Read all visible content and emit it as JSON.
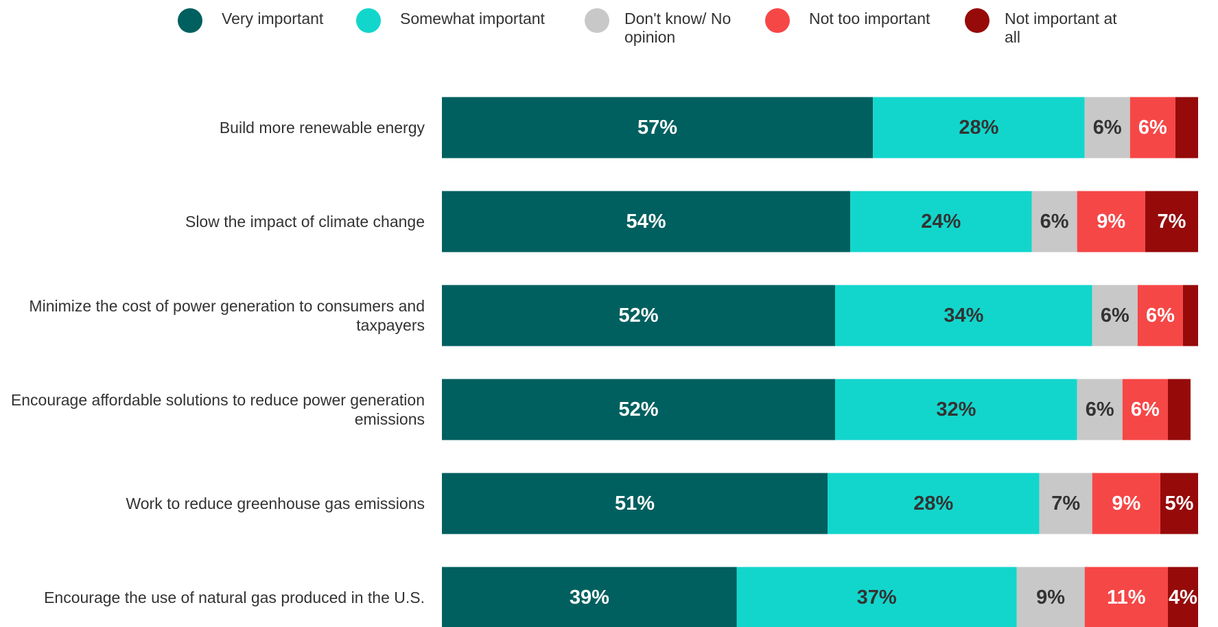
{
  "chart_data": {
    "type": "stacked_bar",
    "orientation": "horizontal",
    "categories": [
      "Build more renewable energy",
      "Slow the impact of climate change",
      "Minimize the cost of power generation to consumers and taxpayers",
      "Encourage affordable solutions to reduce power generation emissions",
      "Work to reduce greenhouse gas emissions",
      "Encourage the use of natural gas produced in the U.S."
    ],
    "xlim": [
      0,
      100
    ],
    "legend": "top",
    "series": [
      {
        "name": "Very important",
        "color": "#00605f",
        "label_color": "#ffffff",
        "values": [
          57,
          54,
          52,
          52,
          51,
          39
        ],
        "value_labels": [
          "57%",
          "54%",
          "52%",
          "52%",
          "51%",
          "39%"
        ]
      },
      {
        "name": "Somewhat important",
        "color": "#12d6cc",
        "label_color": "#333333",
        "values": [
          28,
          24,
          34,
          32,
          28,
          37
        ],
        "value_labels": [
          "28%",
          "24%",
          "34%",
          "32%",
          "28%",
          "37%"
        ]
      },
      {
        "name": "Don't know/ No opinion",
        "color": "#c8c8c8",
        "label_color": "#333333",
        "values": [
          6,
          6,
          6,
          6,
          7,
          9
        ],
        "value_labels": [
          "6%",
          "6%",
          "6%",
          "6%",
          "7%",
          "9%"
        ]
      },
      {
        "name": "Not too important",
        "color": "#f64747",
        "label_color": "#ffffff",
        "values": [
          6,
          9,
          6,
          6,
          9,
          11
        ],
        "value_labels": [
          "6%",
          "9%",
          "6%",
          "6%",
          "9%",
          "11%"
        ]
      },
      {
        "name": "Not important at all",
        "color": "#960a0a",
        "label_color": "#ffffff",
        "values": [
          3,
          7,
          2,
          3,
          5,
          4
        ],
        "value_labels": [
          null,
          "7%",
          null,
          null,
          "5%",
          "4%"
        ]
      }
    ]
  }
}
